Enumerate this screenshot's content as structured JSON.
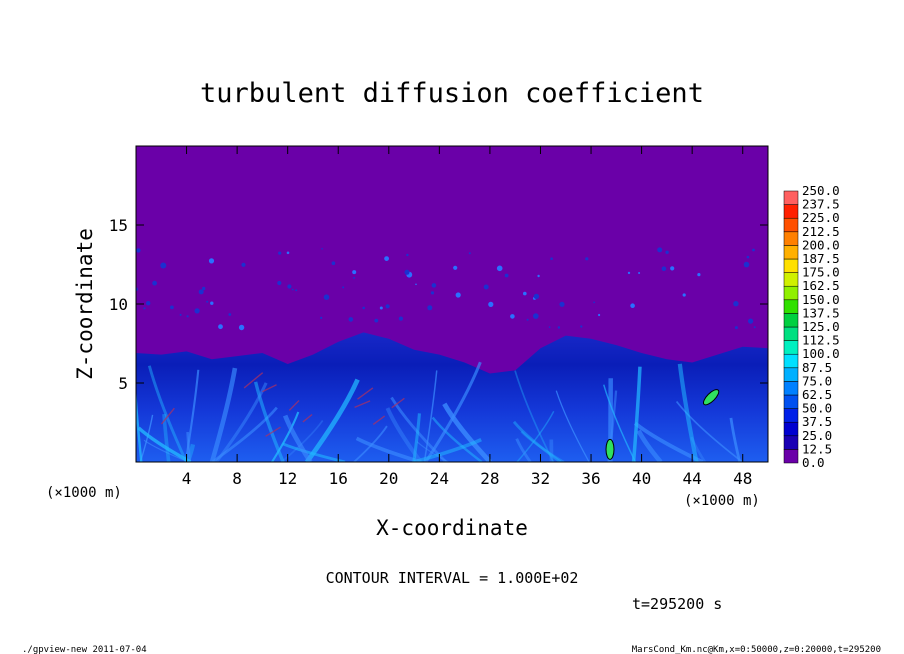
{
  "chart_data": {
    "type": "heatmap",
    "title": "turbulent diffusion coefficient",
    "xlabel": "X-coordinate",
    "ylabel": "Z-coordinate",
    "x_unit": "(×1000 m)",
    "y_unit": "(×1000 m)",
    "xlim": [
      0,
      50
    ],
    "ylim": [
      0,
      20
    ],
    "x_ticks": [
      4,
      8,
      12,
      16,
      20,
      24,
      28,
      32,
      36,
      40,
      44,
      48
    ],
    "y_ticks": [
      5,
      10,
      15
    ],
    "contour_interval": "CONTOUR INTERVAL = 1.000E+02",
    "time_label": "t=295200 s",
    "colorbar": {
      "labels": [
        "0.0",
        "12.5",
        "25.0",
        "37.5",
        "50.0",
        "62.5",
        "75.0",
        "87.5",
        "100.0",
        "112.5",
        "125.0",
        "137.5",
        "150.0",
        "162.5",
        "175.0",
        "187.5",
        "200.0",
        "212.5",
        "225.0",
        "237.5",
        "250.0"
      ],
      "colors": [
        "#6a00a8",
        "#1a00b4",
        "#0000d0",
        "#0020e8",
        "#0050f0",
        "#0080ff",
        "#00b0ff",
        "#00e0ff",
        "#00f0c0",
        "#00e080",
        "#00d040",
        "#30e000",
        "#90f000",
        "#d0f000",
        "#ffe000",
        "#ffb000",
        "#ff8000",
        "#ff5000",
        "#ff2000",
        "#ff6060"
      ]
    },
    "boundary_layer_top": [
      [
        0,
        6.9
      ],
      [
        2,
        6.8
      ],
      [
        4,
        7.0
      ],
      [
        6,
        6.5
      ],
      [
        8,
        6.7
      ],
      [
        10,
        6.9
      ],
      [
        12,
        6.2
      ],
      [
        14,
        6.8
      ],
      [
        16,
        7.6
      ],
      [
        18,
        8.2
      ],
      [
        20,
        7.8
      ],
      [
        22,
        7.1
      ],
      [
        24,
        6.8
      ],
      [
        26,
        6.3
      ],
      [
        28,
        5.6
      ],
      [
        30,
        5.8
      ],
      [
        32,
        7.2
      ],
      [
        34,
        8.0
      ],
      [
        36,
        7.8
      ],
      [
        38,
        7.4
      ],
      [
        40,
        6.9
      ],
      [
        42,
        6.5
      ],
      [
        44,
        6.3
      ],
      [
        46,
        6.8
      ],
      [
        48,
        7.3
      ],
      [
        50,
        7.2
      ]
    ],
    "high_values": [
      {
        "x": 37.5,
        "z": 0.8,
        "value": 100
      },
      {
        "x": 45.5,
        "z": 4.1,
        "value": 100
      }
    ]
  },
  "footer": {
    "left": "./gpview-new  2011-07-04",
    "right": "MarsCond_Km.nc@Km,x=0:50000,z=0:20000,t=295200"
  }
}
